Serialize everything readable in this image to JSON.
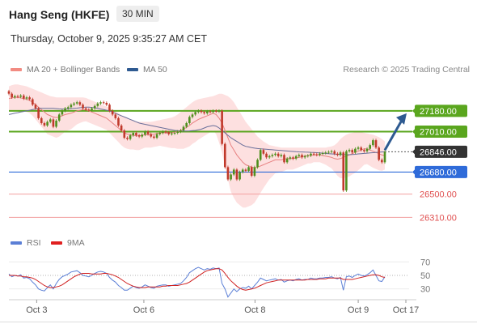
{
  "header": {
    "title": "Hang Seng (HKFE)",
    "timeframe": "30 MIN",
    "datetime": "Thursday, October 9, 2025 9:35:27 AM CET"
  },
  "legend_main": [
    {
      "label": "MA 20 + Bollinger Bands",
      "color": "#f28b82"
    },
    {
      "label": "MA 50",
      "color": "#2e5a91"
    }
  ],
  "legend_rsi": [
    {
      "label": "RSI",
      "color": "#5b7fd6"
    },
    {
      "label": "9MA",
      "color": "#e02020"
    }
  ],
  "credit": "Research © 2025 Trading Central",
  "chart_data": {
    "type": "candlestick",
    "ylim": [
      26200,
      27450
    ],
    "levels": [
      {
        "value": 27180,
        "label": "27180.00",
        "kind": "resistance",
        "color": "#5aa61e"
      },
      {
        "value": 27010,
        "label": "27010.00",
        "kind": "resistance",
        "color": "#5aa61e"
      },
      {
        "value": 26846,
        "label": "26846.00",
        "kind": "current",
        "color": "#333333"
      },
      {
        "value": 26680,
        "label": "26680.00",
        "kind": "pivot",
        "color": "#2f6bd9"
      },
      {
        "value": 26500,
        "label": "26500.00",
        "kind": "support",
        "color": "#e05050"
      },
      {
        "value": 26310,
        "label": "26310.00",
        "kind": "support",
        "color": "#e05050"
      }
    ],
    "x_ticks": [
      {
        "label": "Oct 3",
        "pos": 0.07
      },
      {
        "label": "Oct 6",
        "pos": 0.34
      },
      {
        "label": "Oct 8",
        "pos": 0.62
      },
      {
        "label": "Oct 9",
        "pos": 0.88
      },
      {
        "label": "Oct 17",
        "pos": 1.0
      }
    ],
    "closes": [
      27320,
      27290,
      27300,
      27295,
      27305,
      27280,
      27290,
      27275,
      27230,
      27200,
      27120,
      27080,
      27060,
      27090,
      27110,
      27050,
      27100,
      27150,
      27180,
      27200,
      27210,
      27230,
      27240,
      27250,
      27230,
      27200,
      27190,
      27185,
      27200,
      27220,
      27240,
      27250,
      27245,
      27230,
      27180,
      27150,
      27120,
      27060,
      27020,
      26960,
      26950,
      26980,
      27000,
      26980,
      26970,
      26985,
      27010,
      26990,
      26970,
      26960,
      26990,
      27000,
      27010,
      27005,
      26990,
      26995,
      27000,
      27010,
      27020,
      27050,
      27080,
      27130,
      27150,
      27170,
      27180,
      27170,
      27160,
      27175,
      27170,
      27180,
      27175,
      27180,
      26910,
      26720,
      26620,
      26660,
      26700,
      26620,
      26680,
      26700,
      26690,
      26720,
      26650,
      26720,
      26780,
      26860,
      26830,
      26800,
      26810,
      26820,
      26830,
      26810,
      26820,
      26760,
      26790,
      26800,
      26790,
      26810,
      26820,
      26800,
      26810,
      26815,
      26830,
      26825,
      26820,
      26830,
      26835,
      26840,
      26845,
      26850,
      26830,
      26820,
      26840,
      26530,
      26850,
      26860,
      26840,
      26870,
      26880,
      26860,
      26850,
      26870,
      26900,
      26940,
      26880,
      26780,
      26760,
      26846
    ],
    "ma20": [
      27280,
      27285,
      27290,
      27290,
      27285,
      27280,
      27275,
      27265,
      27250,
      27230,
      27210,
      27190,
      27170,
      27150,
      27140,
      27130,
      27125,
      27130,
      27140,
      27150,
      27155,
      27160,
      27170,
      27180,
      27185,
      27190,
      27190,
      27180,
      27170,
      27160,
      27150,
      27140,
      27130,
      27120,
      27100,
      27080,
      27060,
      27040,
      27020,
      27000,
      26990,
      26985,
      26980,
      26975,
      26975,
      26980,
      26985,
      26985,
      26985,
      26990,
      26995,
      27000,
      27000,
      27000,
      27000,
      27000,
      27005,
      27010,
      27020,
      27030,
      27045,
      27060,
      27080,
      27095,
      27110,
      27120,
      27130,
      27140,
      27150,
      27160,
      27150,
      27120,
      27080,
      27020,
      26960,
      26900,
      26860,
      26820,
      26790,
      26760,
      26740,
      26730,
      26720,
      26715,
      26720,
      26730,
      26740,
      26750,
      26760,
      26770,
      26780,
      26780,
      26780,
      26785,
      26790,
      26790,
      26790,
      26795,
      26800,
      26805,
      26810,
      26815,
      26815,
      26820,
      26820,
      26820,
      26815,
      26810,
      26805,
      26800,
      26790,
      26785,
      26790,
      26800,
      26810,
      26820,
      26830,
      26840,
      26850,
      26860,
      26870,
      26870,
      26860,
      26850,
      26840,
      26830,
      26820,
      26815
    ],
    "bb_upper": [
      27380,
      27390,
      27395,
      27395,
      27390,
      27385,
      27380,
      27370,
      27360,
      27350,
      27340,
      27330,
      27320,
      27310,
      27300,
      27295,
      27290,
      27290,
      27290,
      27290,
      27290,
      27290,
      27290,
      27290,
      27290,
      27290,
      27285,
      27275,
      27265,
      27255,
      27245,
      27235,
      27225,
      27215,
      27205,
      27190,
      27175,
      27160,
      27145,
      27130,
      27120,
      27110,
      27100,
      27095,
      27090,
      27090,
      27090,
      27090,
      27090,
      27095,
      27100,
      27105,
      27110,
      27115,
      27120,
      27125,
      27135,
      27150,
      27170,
      27190,
      27210,
      27230,
      27250,
      27265,
      27275,
      27280,
      27285,
      27290,
      27295,
      27300,
      27310,
      27320,
      27320,
      27310,
      27300,
      27280,
      27250,
      27210,
      27170,
      27130,
      27090,
      27060,
      27030,
      27000,
      26970,
      26950,
      26930,
      26915,
      26900,
      26895,
      26890,
      26885,
      26880,
      26880,
      26880,
      26880,
      26880,
      26880,
      26880,
      26880,
      26880,
      26880,
      26880,
      26880,
      26880,
      26880,
      26880,
      26880,
      26885,
      26890,
      26900,
      26920,
      26950,
      26970,
      26985,
      26995,
      27000,
      27005,
      27005,
      27005,
      27000,
      26995,
      26990,
      26985,
      26975,
      26965,
      26950,
      26930
    ],
    "bb_lower": [
      27180,
      27180,
      27185,
      27185,
      27180,
      27175,
      27170,
      27160,
      27140,
      27110,
      27080,
      27050,
      27020,
      26990,
      26980,
      26970,
      26960,
      26970,
      26990,
      27010,
      27020,
      27030,
      27050,
      27070,
      27080,
      27090,
      27095,
      27085,
      27075,
      27065,
      27055,
      27045,
      27035,
      27025,
      27000,
      26975,
      26950,
      26925,
      26900,
      26880,
      26870,
      26865,
      26865,
      26860,
      26860,
      26870,
      26880,
      26880,
      26880,
      26885,
      26890,
      26895,
      26890,
      26885,
      26880,
      26875,
      26875,
      26870,
      26870,
      26870,
      26880,
      26890,
      26910,
      26925,
      26945,
      26960,
      26975,
      26990,
      27005,
      27020,
      26990,
      26920,
      26840,
      26730,
      26620,
      26520,
      26470,
      26430,
      26410,
      26390,
      26390,
      26400,
      26410,
      26430,
      26470,
      26510,
      26550,
      26585,
      26620,
      26645,
      26670,
      26675,
      26680,
      26690,
      26700,
      26700,
      26700,
      26710,
      26720,
      26730,
      26740,
      26750,
      26750,
      26760,
      26760,
      26760,
      26750,
      26740,
      26725,
      26710,
      26680,
      26650,
      26630,
      26630,
      26635,
      26645,
      26660,
      26675,
      26695,
      26715,
      26740,
      26745,
      26730,
      26715,
      26705,
      26695,
      26690,
      26700
    ],
    "ma50": [
      27150,
      27155,
      27160,
      27165,
      27170,
      27175,
      27180,
      27185,
      27190,
      27195,
      27200,
      27200,
      27200,
      27200,
      27200,
      27200,
      27198,
      27196,
      27195,
      27195,
      27196,
      27198,
      27200,
      27202,
      27205,
      27208,
      27210,
      27210,
      27208,
      27205,
      27200,
      27195,
      27190,
      27185,
      27180,
      27170,
      27160,
      27150,
      27140,
      27130,
      27120,
      27110,
      27100,
      27090,
      27080,
      27075,
      27070,
      27065,
      27060,
      27055,
      27050,
      27045,
      27040,
      27035,
      27030,
      27025,
      27020,
      27018,
      27016,
      27015,
      27015,
      27016,
      27018,
      27020,
      27025,
      27030,
      27040,
      27050,
      27055,
      27060,
      27055,
      27040,
      27020,
      27000,
      26980,
      26960,
      26945,
      26930,
      26915,
      26900,
      26890,
      26885,
      26880,
      26875,
      26872,
      26870,
      26868,
      26866,
      26864,
      26862,
      26860,
      26858,
      26856,
      26854,
      26852,
      26850,
      26848,
      26846,
      26845,
      26844,
      26843,
      26842,
      26841,
      26840,
      26838,
      26836,
      26834,
      26832,
      26830,
      26828,
      26826,
      26825,
      26824,
      26823,
      26822,
      26822,
      26823,
      26825,
      26828,
      26830,
      26832,
      26834,
      26836,
      26838,
      26840,
      26842,
      26844,
      26845
    ],
    "rsi_ylim": [
      20,
      80
    ],
    "rsi_levels": [
      70,
      50,
      30
    ],
    "rsi": [
      52,
      48,
      50,
      49,
      51,
      46,
      47,
      45,
      40,
      36,
      30,
      28,
      27,
      32,
      36,
      30,
      38,
      44,
      48,
      50,
      52,
      55,
      56,
      57,
      54,
      50,
      49,
      48,
      50,
      53,
      55,
      56,
      55,
      53,
      47,
      43,
      40,
      35,
      32,
      28,
      28,
      31,
      34,
      32,
      31,
      33,
      36,
      34,
      32,
      31,
      34,
      35,
      36,
      36,
      34,
      35,
      36,
      37,
      38,
      42,
      47,
      54,
      57,
      60,
      62,
      60,
      58,
      60,
      59,
      61,
      60,
      61,
      38,
      30,
      18,
      24,
      30,
      26,
      30,
      32,
      31,
      34,
      30,
      35,
      40,
      46,
      44,
      42,
      43,
      44,
      45,
      43,
      44,
      40,
      42,
      43,
      42,
      44,
      45,
      43,
      44,
      44,
      46,
      45,
      45,
      46,
      46,
      47,
      47,
      48,
      46,
      45,
      47,
      28,
      48,
      49,
      47,
      50,
      52,
      50,
      49,
      51,
      54,
      58,
      50,
      42,
      41,
      48
    ],
    "rsi_ma9": [
      50,
      50,
      50,
      49,
      49,
      48,
      48,
      47,
      46,
      44,
      41,
      38,
      35,
      33,
      32,
      32,
      33,
      34,
      36,
      39,
      42,
      45,
      48,
      50,
      52,
      53,
      53,
      53,
      52,
      52,
      52,
      52,
      53,
      53,
      52,
      51,
      49,
      47,
      44,
      41,
      38,
      36,
      34,
      33,
      32,
      32,
      32,
      33,
      33,
      33,
      33,
      33,
      34,
      34,
      35,
      35,
      35,
      35,
      36,
      37,
      38,
      40,
      43,
      46,
      49,
      52,
      55,
      57,
      58,
      59,
      60,
      60,
      58,
      53,
      47,
      42,
      38,
      34,
      31,
      29,
      28,
      29,
      30,
      31,
      33,
      35,
      37,
      39,
      40,
      41,
      42,
      43,
      43,
      43,
      43,
      43,
      43,
      43,
      43,
      43,
      43,
      44,
      44,
      44,
      44,
      45,
      45,
      45,
      46,
      46,
      46,
      46,
      46,
      44,
      44,
      44,
      44,
      45,
      46,
      47,
      48,
      49,
      50,
      51,
      51,
      50,
      48,
      47
    ]
  }
}
